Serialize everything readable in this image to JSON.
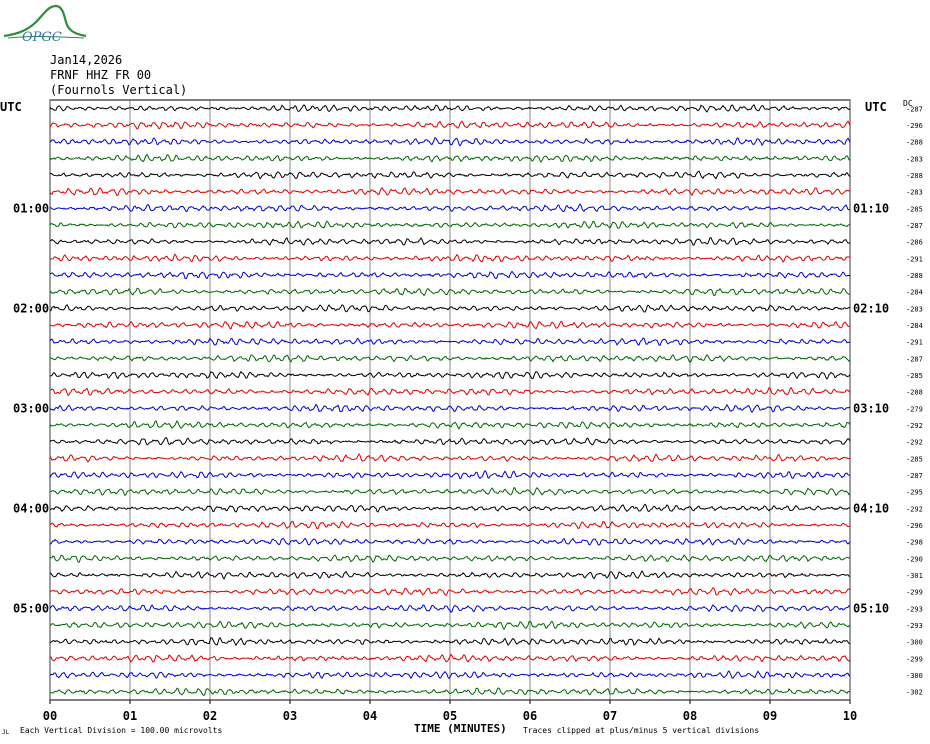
{
  "logo": {
    "text": "OPGC"
  },
  "header": {
    "date": "Jan14,2026",
    "station": "FRNF HHZ FR 00",
    "location": "(Fournols Vertical)"
  },
  "left_axis_label": "UTC",
  "right_axis_label": "UTC",
  "dc_label": "DC",
  "footer": {
    "scale_text": "Each Vertical Division =  100.00 microvolts",
    "x_axis_title": "TIME (MINUTES)",
    "clip_text": "Traces clipped at plus/minus 5 vertical divisions"
  },
  "colors": {
    "black": "#000000",
    "red": "#dd0000",
    "blue": "#0000cc",
    "green": "#006600"
  },
  "chart_data": {
    "type": "line",
    "x_ticks": [
      "00",
      "01",
      "02",
      "03",
      "04",
      "05",
      "06",
      "07",
      "08",
      "09",
      "10"
    ],
    "xlim": [
      0,
      10
    ],
    "grid": true,
    "left_time_labels": [
      "01:00",
      "02:00",
      "03:00",
      "04:00",
      "05:00"
    ],
    "right_time_labels": [
      "01:10",
      "02:10",
      "03:10",
      "04:10",
      "05:10"
    ],
    "trace_color_cycle": [
      "black",
      "red",
      "blue",
      "green"
    ],
    "dc_offsets": [
      -287,
      -296,
      -288,
      -283,
      -288,
      -283,
      -285,
      -287,
      -286,
      -291,
      -288,
      -284,
      -283,
      -284,
      -291,
      -287,
      -285,
      -288,
      -279,
      -292,
      -292,
      -285,
      -287,
      -295,
      -292,
      -296,
      -298,
      -290,
      -301,
      -299,
      -293,
      -293,
      -300,
      -299,
      -300,
      -302
    ]
  }
}
